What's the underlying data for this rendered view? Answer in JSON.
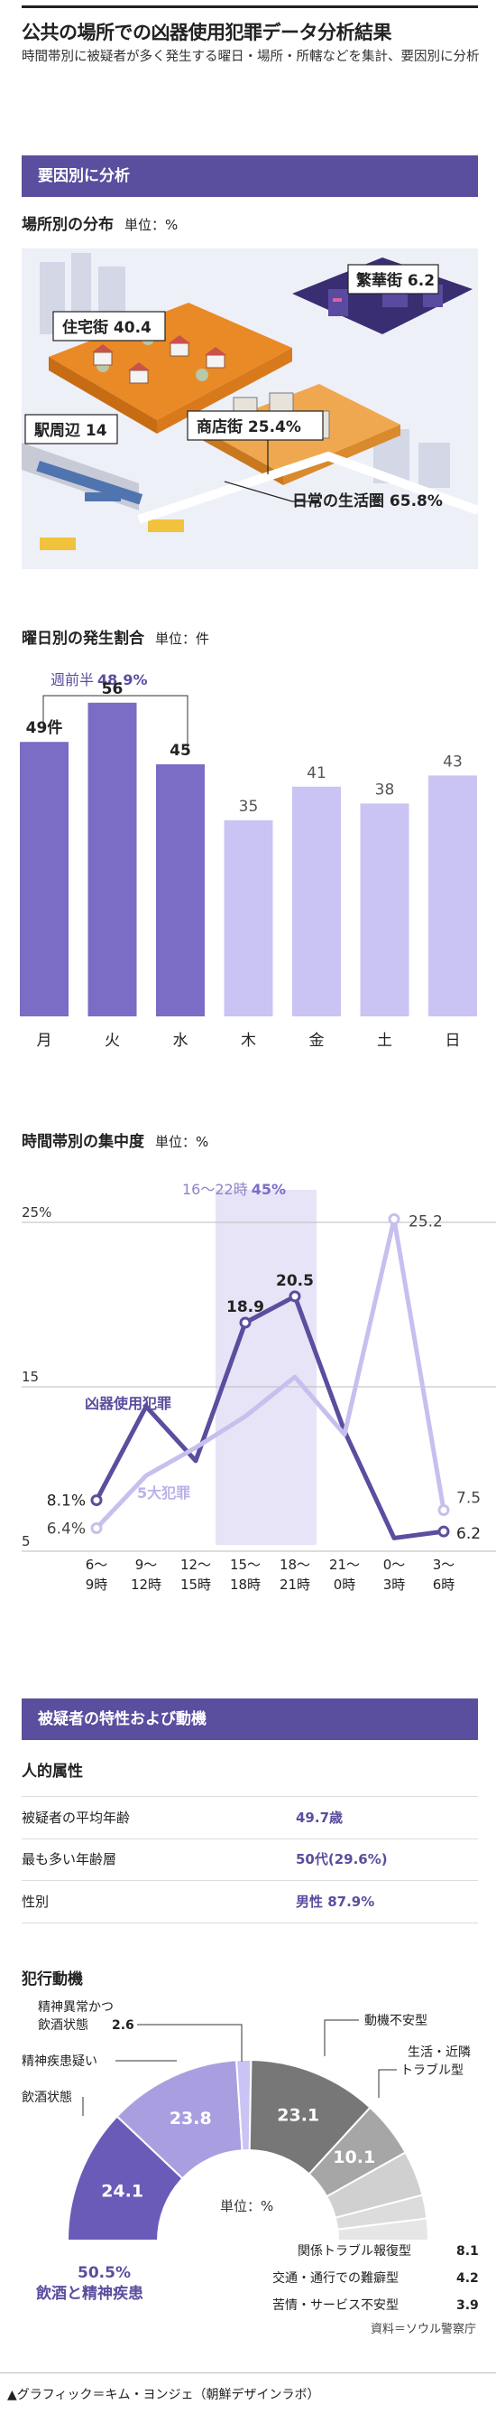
{
  "header": {
    "title": "公共の場所での凶器使用犯罪データ分析結果",
    "subtitle": "時間帯別に被疑者が多く発生する曜日・場所・所轄などを集計、要因別に分析"
  },
  "section1": {
    "title": "要因別に分析"
  },
  "place": {
    "title": "場所別の分布",
    "unit": "単位：%",
    "labels": {
      "residential": "住宅街 40.4",
      "downtown": "繁華街 6.2",
      "station": "駅周辺 14",
      "shopping": "商店街 25.4%",
      "daily": "日常の生活圏 65.8%"
    }
  },
  "weekday": {
    "title": "曜日別の発生割合",
    "unit": "単位：件",
    "annotation_label": "週前半",
    "annotation_value": "48.9%",
    "first_value_label": "49件"
  },
  "hourly": {
    "title": "時間帯別の集中度",
    "unit": "単位：%",
    "highlight_label": "16～22時",
    "highlight_value": "45%",
    "series_a_label": "凶器使用犯罪",
    "series_b_label": "5大犯罪",
    "ytick_25": "25%",
    "ytick_15": "15",
    "ytick_5": "5"
  },
  "section2": {
    "title": "被疑者の特性および動機"
  },
  "personal": {
    "title": "人的属性",
    "rows": [
      {
        "label": "被疑者の平均年齢",
        "value": "49.7歳"
      },
      {
        "label": "最も多い年齢層",
        "value": "50代(29.6%)"
      },
      {
        "label": "性別",
        "value": "男性 87.9%"
      }
    ]
  },
  "motive": {
    "title": "犯行動機",
    "unit": "単位：%",
    "group_value": "50.5%",
    "group_label": "飲酒と精神疾患",
    "legend": {
      "l1a": "精神異常かつ",
      "l1b": "飲酒状態",
      "l1v": "2.6",
      "l2": "精神疾患疑い",
      "l3": "飲酒状態",
      "l4": "動機不安型",
      "l5a": "生活・近隣",
      "l5b": "トラブル型",
      "l6": "関係トラブル報復型",
      "l6v": "8.1",
      "l7": "交通・通行での難癖型",
      "l7v": "4.2",
      "l8": "苦情・サービス不安型",
      "l8v": "3.9"
    }
  },
  "footer": {
    "source": "資料＝ソウル警察庁",
    "credit": "▲グラフィック＝キム・ヨンジェ（朝鮮デザインラボ）"
  },
  "colors": {
    "band": "#5a4e9e",
    "dark_purple": "#7b6cc6",
    "light_purple": "#c9c4f3",
    "line_dark": "#5a4e9e",
    "line_light": "#c6c0ef",
    "grey": "#8a8a8a"
  },
  "chart_data": [
    {
      "type": "bar",
      "title": "曜日別の発生割合",
      "unit": "件",
      "categories": [
        "月",
        "火",
        "水",
        "木",
        "金",
        "土",
        "日"
      ],
      "values": [
        49,
        56,
        45,
        35,
        41,
        38,
        43
      ],
      "highlighted": [
        true,
        true,
        true,
        false,
        false,
        false,
        false
      ]
    },
    {
      "type": "line",
      "title": "時間帯別の集中度",
      "unit": "%",
      "categories": [
        "6～9時",
        "9～12時",
        "12～15時",
        "15～18時",
        "18～21時",
        "21～0時",
        "0～3時",
        "3～6時"
      ],
      "ylim": [
        5,
        25
      ],
      "series": [
        {
          "name": "凶器使用犯罪",
          "values": [
            8.1,
            13.8,
            10.5,
            18.9,
            20.5,
            12.3,
            5.8,
            6.2
          ],
          "labeled": [
            true,
            false,
            false,
            true,
            true,
            false,
            false,
            true
          ]
        },
        {
          "name": "5大犯罪",
          "values": [
            6.4,
            9.6,
            11.3,
            13.2,
            15.6,
            12.1,
            25.2,
            7.5
          ],
          "labeled": [
            true,
            false,
            false,
            false,
            false,
            false,
            true,
            true
          ]
        }
      ]
    },
    {
      "type": "pie",
      "title": "犯行動機",
      "unit": "%",
      "slices": [
        {
          "label": "飲酒状態",
          "value": 24.1
        },
        {
          "label": "精神疾患疑い",
          "value": 23.8
        },
        {
          "label": "精神異常かつ飲酒状態",
          "value": 2.6
        },
        {
          "label": "動機不安型",
          "value": 23.1
        },
        {
          "label": "生活・近隣トラブル型",
          "value": 10.1
        },
        {
          "label": "関係トラブル報復型",
          "value": 8.1
        },
        {
          "label": "交通・通行での難癖型",
          "value": 4.2
        },
        {
          "label": "苦情・サービス不安型",
          "value": 3.9
        }
      ]
    }
  ]
}
